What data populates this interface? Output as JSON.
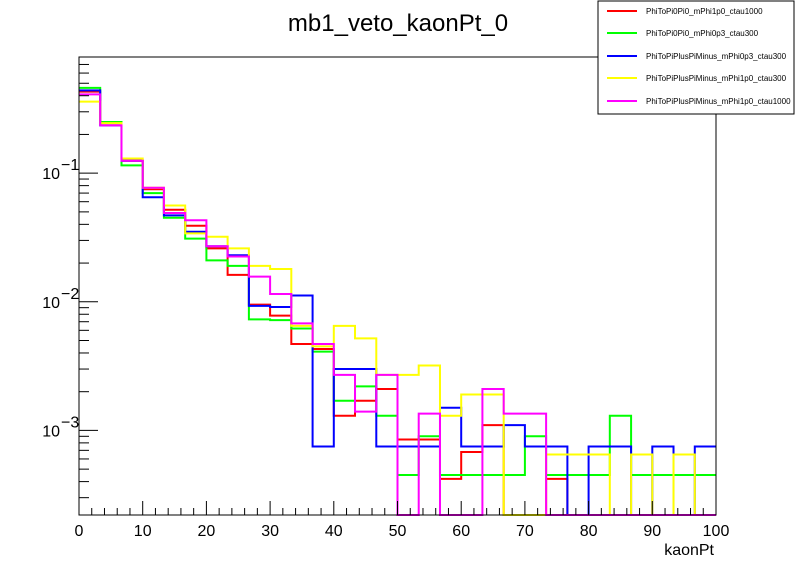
{
  "chart_data": {
    "type": "line",
    "title": "mb1_veto_kaonPt_0",
    "xlabel": "kaonPt",
    "ylabel": "",
    "xlim": [
      0,
      100
    ],
    "ylim": [
      0.00022,
      0.8
    ],
    "y_scale": "log",
    "grid": false,
    "legend_placement": "top-right, outside frame",
    "x_ticks": [
      0,
      10,
      20,
      30,
      40,
      50,
      60,
      70,
      80,
      90,
      100
    ],
    "x_tick_labels": [
      "0",
      "10",
      "20",
      "30",
      "40",
      "50",
      "60",
      "70",
      "80",
      "90",
      "100"
    ],
    "y_ticks": [
      0.001,
      0.01,
      0.1
    ],
    "y_tick_labels": [
      "10",
      "10",
      "10"
    ],
    "y_tick_exponents": [
      "−3",
      "−2",
      "−1"
    ],
    "bin_edges": [
      0,
      3.33,
      6.67,
      10,
      13.33,
      16.67,
      20,
      23.33,
      26.67,
      30,
      33.33,
      36.67,
      40,
      43.33,
      46.67,
      50,
      53.33,
      56.67,
      60,
      63.33,
      66.67,
      70,
      73.33,
      76.67,
      80,
      83.33,
      86.67,
      90,
      93.33,
      96.67,
      100
    ],
    "series": [
      {
        "name": "PhiToPi0Pi0_mPhi1p0_ctau1000",
        "color": "#ff0000",
        "values": [
          0.43,
          0.245,
          0.125,
          0.075,
          0.052,
          0.039,
          0.026,
          0.0162,
          0.0095,
          0.0078,
          0.0047,
          0.0043,
          0.0013,
          0.0017,
          0.0021,
          0.00085,
          0.00085,
          0.00042,
          0.00068,
          0.0011,
          0.0,
          0.0,
          0.00042,
          0.0,
          0.0,
          0.0,
          0.0,
          0.0,
          0.0,
          0.0
        ]
      },
      {
        "name": "PhiToPi0Pi0_mPhi0p3_ctau300",
        "color": "#00ff00",
        "values": [
          0.46,
          0.25,
          0.115,
          0.07,
          0.045,
          0.031,
          0.021,
          0.019,
          0.0073,
          0.0072,
          0.0062,
          0.0041,
          0.0017,
          0.0022,
          0.0013,
          0.00045,
          0.0009,
          0.00045,
          0.00045,
          0.00045,
          0.00045,
          0.0009,
          0.00045,
          0.00045,
          0.00045,
          0.0013,
          0.00045,
          0.00045,
          0.00045,
          0.00045
        ]
      },
      {
        "name": "PhiToPiPlusPiMinus_mPhi0p3_ctau300",
        "color": "#0000ff",
        "values": [
          0.44,
          0.235,
          0.125,
          0.065,
          0.047,
          0.035,
          0.027,
          0.023,
          0.0093,
          0.0091,
          0.0112,
          0.00075,
          0.003,
          0.003,
          0.00075,
          0.00075,
          0.00075,
          0.0015,
          0.00075,
          0.00075,
          0.0011,
          0.00075,
          0.00075,
          0.0,
          0.00075,
          0.00075,
          0.0,
          0.00075,
          0.0,
          0.00075
        ]
      },
      {
        "name": "PhiToPiPlusPiMinus_mPhi1p0_ctau300",
        "color": "#ffff00",
        "values": [
          0.36,
          0.245,
          0.13,
          0.077,
          0.056,
          0.034,
          0.032,
          0.026,
          0.019,
          0.018,
          0.0065,
          0.0045,
          0.0065,
          0.0052,
          0.0027,
          0.0027,
          0.0032,
          0.0013,
          0.0019,
          0.0019,
          0.0,
          0.0,
          0.00065,
          0.00065,
          0.00065,
          0.0,
          0.00065,
          0.0,
          0.00065,
          0.0
        ]
      },
      {
        "name": "PhiToPiPlusPiMinus_mPhi1p0_ctau1000",
        "color": "#ff00ff",
        "values": [
          0.41,
          0.235,
          0.125,
          0.077,
          0.049,
          0.043,
          0.027,
          0.0225,
          0.0157,
          0.0115,
          0.0068,
          0.0047,
          0.0027,
          0.0014,
          0.0027,
          0.0,
          0.00135,
          0.0,
          0.0,
          0.0021,
          0.00135,
          0.00135,
          0.0,
          0.0,
          0.0,
          0.0,
          0.0,
          0.0,
          0.0,
          0.0
        ]
      }
    ]
  }
}
